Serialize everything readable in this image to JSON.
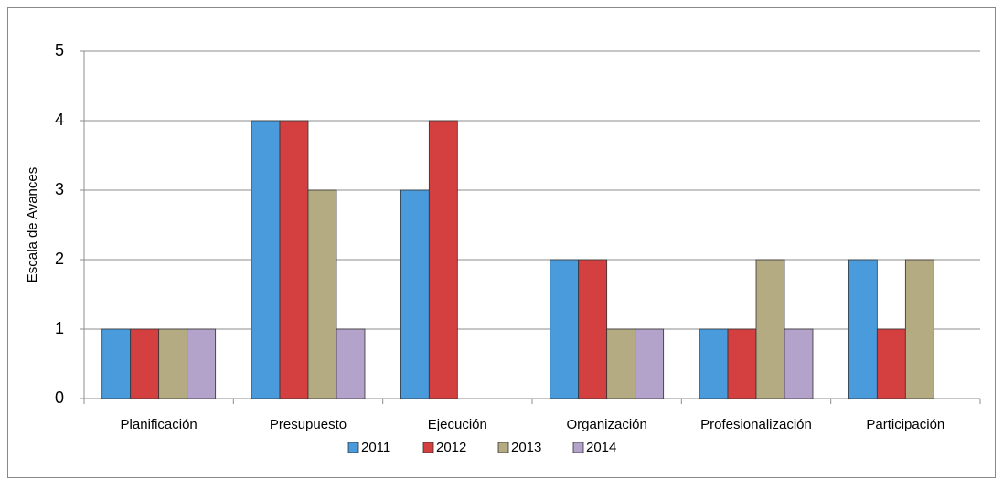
{
  "chart_data": {
    "type": "bar",
    "y_label": "Escala de Avances",
    "categories": [
      "Planificación",
      "Presupuesto",
      "Ejecución",
      "Organización",
      "Profesionalización",
      "Participación"
    ],
    "series": [
      {
        "name": "2011",
        "color": "#4a9bdc",
        "values": [
          1,
          4,
          3,
          2,
          1,
          2
        ]
      },
      {
        "name": "2012",
        "color": "#d43f3f",
        "values": [
          1,
          4,
          4,
          2,
          1,
          1
        ]
      },
      {
        "name": "2013",
        "color": "#b5ab82",
        "values": [
          1,
          3,
          0,
          1,
          2,
          2
        ]
      },
      {
        "name": "2014",
        "color": "#b3a2c9",
        "values": [
          1,
          1,
          0,
          1,
          1,
          0
        ]
      }
    ],
    "ylim": [
      0,
      5
    ],
    "yticks": [
      0,
      1,
      2,
      3,
      4,
      5
    ],
    "grid": true,
    "legend": "bottom"
  }
}
